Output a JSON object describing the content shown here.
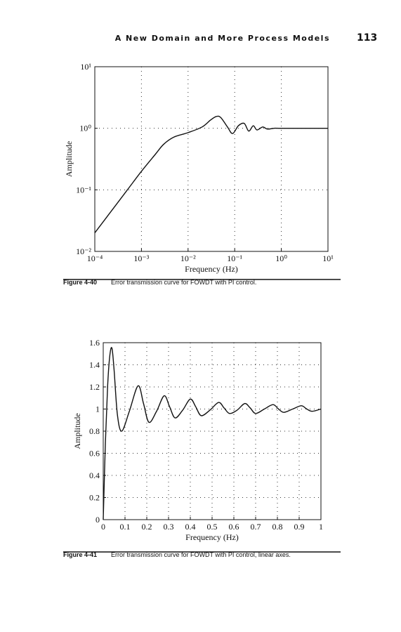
{
  "header": {
    "title": "A New Domain and More Process Models",
    "page_number": "113"
  },
  "chart_data": [
    {
      "type": "line",
      "log_x": true,
      "log_y": true,
      "grid": true,
      "color": "#111111",
      "xlabel": "Frequency (Hz)",
      "ylabel": "Amplitude",
      "x": [
        0.0001,
        0.0002,
        0.0005,
        0.001,
        0.002,
        0.003,
        0.005,
        0.01,
        0.02,
        0.03,
        0.04,
        0.05,
        0.07,
        0.09,
        0.12,
        0.16,
        0.2,
        0.25,
        0.3,
        0.4,
        0.5,
        0.7,
        1,
        10
      ],
      "values": [
        0.02,
        0.04,
        0.1,
        0.2,
        0.38,
        0.55,
        0.72,
        0.85,
        1.05,
        1.35,
        1.55,
        1.5,
        1.05,
        0.82,
        1.1,
        1.2,
        0.9,
        1.1,
        0.94,
        1.05,
        0.97,
        1.0,
        1.0,
        1.0
      ],
      "xlim": [
        0.0001,
        10
      ],
      "ylim": [
        0.01,
        10
      ],
      "xticks": [
        {
          "value": 0.0001,
          "label": "10⁻⁴"
        },
        {
          "value": 0.001,
          "label": "10⁻³"
        },
        {
          "value": 0.01,
          "label": "10⁻²"
        },
        {
          "value": 0.1,
          "label": "10⁻¹"
        },
        {
          "value": 1,
          "label": "10⁰"
        },
        {
          "value": 10,
          "label": "10¹"
        }
      ],
      "yticks": [
        {
          "value": 0.01,
          "label": "10⁻²"
        },
        {
          "value": 0.1,
          "label": "10⁻¹"
        },
        {
          "value": 1,
          "label": "10⁰"
        },
        {
          "value": 10,
          "label": "10¹"
        }
      ],
      "caption": {
        "label": "Figure 4-40",
        "text": "Error transmission curve for FOWDT with PI control."
      }
    },
    {
      "type": "line",
      "log_x": false,
      "log_y": false,
      "grid": true,
      "color": "#111111",
      "xlabel": "Frequency (Hz)",
      "ylabel": "Amplitude",
      "x": [
        0,
        0.01,
        0.02,
        0.03,
        0.04,
        0.05,
        0.065,
        0.085,
        0.12,
        0.16,
        0.185,
        0.21,
        0.245,
        0.28,
        0.305,
        0.33,
        0.365,
        0.4,
        0.425,
        0.45,
        0.49,
        0.53,
        0.555,
        0.58,
        0.615,
        0.65,
        0.675,
        0.7,
        0.74,
        0.78,
        0.805,
        0.83,
        0.87,
        0.91,
        0.935,
        0.96,
        1
      ],
      "values": [
        0,
        0.7,
        1.2,
        1.48,
        1.55,
        1.35,
        0.95,
        0.8,
        0.98,
        1.21,
        1.05,
        0.88,
        0.98,
        1.12,
        1.02,
        0.92,
        0.99,
        1.09,
        1.02,
        0.94,
        0.99,
        1.06,
        1.01,
        0.96,
        0.99,
        1.05,
        1.01,
        0.96,
        1.0,
        1.04,
        1.0,
        0.97,
        1.0,
        1.03,
        1.0,
        0.98,
        1.0
      ],
      "xlim": [
        0,
        1
      ],
      "ylim": [
        0,
        1.6
      ],
      "xticks": [
        0,
        0.1,
        0.2,
        0.3,
        0.4,
        0.5,
        0.6,
        0.7,
        0.8,
        0.9,
        1
      ],
      "yticks": [
        0,
        0.2,
        0.4,
        0.6,
        0.8,
        1,
        1.2,
        1.4,
        1.6
      ],
      "caption": {
        "label": "Figure 4-41",
        "text": "Error transmission curve for FOWDT with PI control, linear axes."
      }
    }
  ]
}
